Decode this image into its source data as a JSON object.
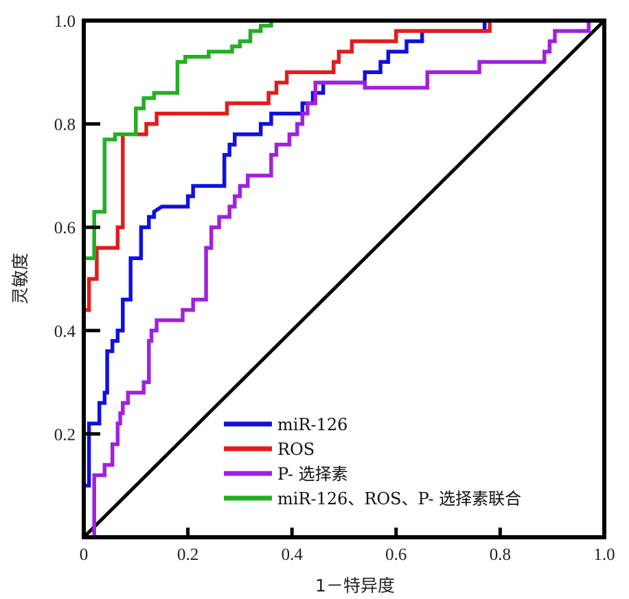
{
  "chart_data": {
    "type": "line",
    "xlabel": "1－特异度",
    "ylabel": "灵敏度",
    "xlim": [
      0,
      1
    ],
    "ylim": [
      0,
      1
    ],
    "grid": false,
    "legend_position": "bottom-right",
    "x_ticks": [
      "0",
      "0.2",
      "0.4",
      "0.6",
      "0.8",
      "1.0"
    ],
    "y_ticks": [
      "0.2",
      "0.4",
      "0.6",
      "0.8",
      "1.0"
    ],
    "x_tick_values": [
      0,
      0.2,
      0.4,
      0.6,
      0.8,
      1.0
    ],
    "y_tick_values": [
      0.2,
      0.4,
      0.6,
      0.8,
      1.0
    ],
    "series": [
      {
        "name": "miR-126",
        "color": "#1010e0",
        "points": [
          [
            0,
            0
          ],
          [
            0,
            0.1
          ],
          [
            0.01,
            0.1
          ],
          [
            0.01,
            0.22
          ],
          [
            0.03,
            0.22
          ],
          [
            0.03,
            0.26
          ],
          [
            0.04,
            0.26
          ],
          [
            0.04,
            0.28
          ],
          [
            0.045,
            0.28
          ],
          [
            0.045,
            0.36
          ],
          [
            0.055,
            0.36
          ],
          [
            0.055,
            0.38
          ],
          [
            0.065,
            0.38
          ],
          [
            0.065,
            0.4
          ],
          [
            0.075,
            0.4
          ],
          [
            0.075,
            0.46
          ],
          [
            0.09,
            0.46
          ],
          [
            0.09,
            0.54
          ],
          [
            0.11,
            0.54
          ],
          [
            0.11,
            0.6
          ],
          [
            0.125,
            0.6
          ],
          [
            0.125,
            0.62
          ],
          [
            0.135,
            0.62
          ],
          [
            0.135,
            0.63
          ],
          [
            0.15,
            0.64
          ],
          [
            0.2,
            0.64
          ],
          [
            0.2,
            0.66
          ],
          [
            0.21,
            0.66
          ],
          [
            0.21,
            0.68
          ],
          [
            0.27,
            0.68
          ],
          [
            0.27,
            0.74
          ],
          [
            0.28,
            0.74
          ],
          [
            0.28,
            0.76
          ],
          [
            0.29,
            0.76
          ],
          [
            0.29,
            0.78
          ],
          [
            0.34,
            0.78
          ],
          [
            0.34,
            0.8
          ],
          [
            0.36,
            0.8
          ],
          [
            0.36,
            0.82
          ],
          [
            0.42,
            0.82
          ],
          [
            0.42,
            0.84
          ],
          [
            0.44,
            0.84
          ],
          [
            0.44,
            0.86
          ],
          [
            0.46,
            0.86
          ],
          [
            0.46,
            0.88
          ],
          [
            0.54,
            0.88
          ],
          [
            0.54,
            0.9
          ],
          [
            0.57,
            0.9
          ],
          [
            0.57,
            0.92
          ],
          [
            0.585,
            0.92
          ],
          [
            0.585,
            0.94
          ],
          [
            0.62,
            0.94
          ],
          [
            0.62,
            0.96
          ],
          [
            0.65,
            0.96
          ],
          [
            0.65,
            0.98
          ],
          [
            0.77,
            0.98
          ],
          [
            0.77,
            1.0
          ],
          [
            1.0,
            1.0
          ]
        ]
      },
      {
        "name": "ROS",
        "color": "#e51b1b",
        "points": [
          [
            0,
            0
          ],
          [
            0,
            0.44
          ],
          [
            0.01,
            0.44
          ],
          [
            0.01,
            0.5
          ],
          [
            0.025,
            0.5
          ],
          [
            0.025,
            0.56
          ],
          [
            0.065,
            0.56
          ],
          [
            0.065,
            0.6
          ],
          [
            0.075,
            0.6
          ],
          [
            0.075,
            0.78
          ],
          [
            0.12,
            0.78
          ],
          [
            0.12,
            0.8
          ],
          [
            0.14,
            0.8
          ],
          [
            0.14,
            0.82
          ],
          [
            0.275,
            0.82
          ],
          [
            0.275,
            0.84
          ],
          [
            0.355,
            0.84
          ],
          [
            0.355,
            0.86
          ],
          [
            0.37,
            0.86
          ],
          [
            0.37,
            0.88
          ],
          [
            0.39,
            0.88
          ],
          [
            0.39,
            0.9
          ],
          [
            0.48,
            0.9
          ],
          [
            0.48,
            0.92
          ],
          [
            0.49,
            0.92
          ],
          [
            0.49,
            0.94
          ],
          [
            0.515,
            0.94
          ],
          [
            0.515,
            0.96
          ],
          [
            0.6,
            0.96
          ],
          [
            0.6,
            0.98
          ],
          [
            0.78,
            0.98
          ],
          [
            0.78,
            1.0
          ],
          [
            1.0,
            1.0
          ]
        ]
      },
      {
        "name": "P- 选择素",
        "color": "#a020e0",
        "points": [
          [
            0,
            0
          ],
          [
            0.02,
            0
          ],
          [
            0.02,
            0.12
          ],
          [
            0.04,
            0.12
          ],
          [
            0.04,
            0.14
          ],
          [
            0.055,
            0.14
          ],
          [
            0.055,
            0.18
          ],
          [
            0.065,
            0.18
          ],
          [
            0.065,
            0.22
          ],
          [
            0.07,
            0.22
          ],
          [
            0.07,
            0.24
          ],
          [
            0.075,
            0.24
          ],
          [
            0.075,
            0.26
          ],
          [
            0.085,
            0.26
          ],
          [
            0.085,
            0.28
          ],
          [
            0.115,
            0.28
          ],
          [
            0.115,
            0.3
          ],
          [
            0.125,
            0.3
          ],
          [
            0.125,
            0.38
          ],
          [
            0.13,
            0.38
          ],
          [
            0.13,
            0.4
          ],
          [
            0.14,
            0.4
          ],
          [
            0.14,
            0.42
          ],
          [
            0.19,
            0.42
          ],
          [
            0.19,
            0.44
          ],
          [
            0.21,
            0.44
          ],
          [
            0.21,
            0.46
          ],
          [
            0.235,
            0.46
          ],
          [
            0.235,
            0.56
          ],
          [
            0.245,
            0.56
          ],
          [
            0.245,
            0.6
          ],
          [
            0.26,
            0.6
          ],
          [
            0.26,
            0.62
          ],
          [
            0.28,
            0.62
          ],
          [
            0.28,
            0.64
          ],
          [
            0.29,
            0.64
          ],
          [
            0.29,
            0.66
          ],
          [
            0.3,
            0.66
          ],
          [
            0.3,
            0.68
          ],
          [
            0.315,
            0.68
          ],
          [
            0.315,
            0.7
          ],
          [
            0.36,
            0.7
          ],
          [
            0.36,
            0.74
          ],
          [
            0.37,
            0.74
          ],
          [
            0.37,
            0.76
          ],
          [
            0.395,
            0.76
          ],
          [
            0.395,
            0.78
          ],
          [
            0.41,
            0.78
          ],
          [
            0.41,
            0.8
          ],
          [
            0.42,
            0.8
          ],
          [
            0.42,
            0.82
          ],
          [
            0.43,
            0.82
          ],
          [
            0.43,
            0.84
          ],
          [
            0.445,
            0.84
          ],
          [
            0.445,
            0.88
          ],
          [
            0.54,
            0.88
          ],
          [
            0.54,
            0.87
          ],
          [
            0.66,
            0.87
          ],
          [
            0.66,
            0.9
          ],
          [
            0.76,
            0.9
          ],
          [
            0.76,
            0.92
          ],
          [
            0.885,
            0.92
          ],
          [
            0.885,
            0.94
          ],
          [
            0.895,
            0.94
          ],
          [
            0.895,
            0.96
          ],
          [
            0.905,
            0.96
          ],
          [
            0.905,
            0.98
          ],
          [
            0.97,
            0.98
          ],
          [
            0.97,
            1.0
          ],
          [
            1.0,
            1.0
          ]
        ]
      },
      {
        "name": "miR-126、ROS、P- 选择素联合",
        "color": "#22b022",
        "points": [
          [
            0,
            0
          ],
          [
            0,
            0.54
          ],
          [
            0.02,
            0.54
          ],
          [
            0.02,
            0.63
          ],
          [
            0.04,
            0.63
          ],
          [
            0.04,
            0.77
          ],
          [
            0.06,
            0.77
          ],
          [
            0.06,
            0.78
          ],
          [
            0.1,
            0.78
          ],
          [
            0.1,
            0.83
          ],
          [
            0.115,
            0.83
          ],
          [
            0.115,
            0.85
          ],
          [
            0.135,
            0.85
          ],
          [
            0.135,
            0.86
          ],
          [
            0.18,
            0.86
          ],
          [
            0.18,
            0.92
          ],
          [
            0.195,
            0.92
          ],
          [
            0.195,
            0.93
          ],
          [
            0.24,
            0.93
          ],
          [
            0.24,
            0.94
          ],
          [
            0.285,
            0.94
          ],
          [
            0.285,
            0.95
          ],
          [
            0.3,
            0.95
          ],
          [
            0.3,
            0.96
          ],
          [
            0.32,
            0.96
          ],
          [
            0.32,
            0.98
          ],
          [
            0.34,
            0.98
          ],
          [
            0.34,
            0.99
          ],
          [
            0.36,
            0.99
          ],
          [
            0.36,
            1.0
          ],
          [
            1.0,
            1.0
          ]
        ]
      }
    ],
    "reference_line": {
      "color": "#000000",
      "points": [
        [
          0,
          0
        ],
        [
          1,
          1
        ]
      ]
    }
  }
}
